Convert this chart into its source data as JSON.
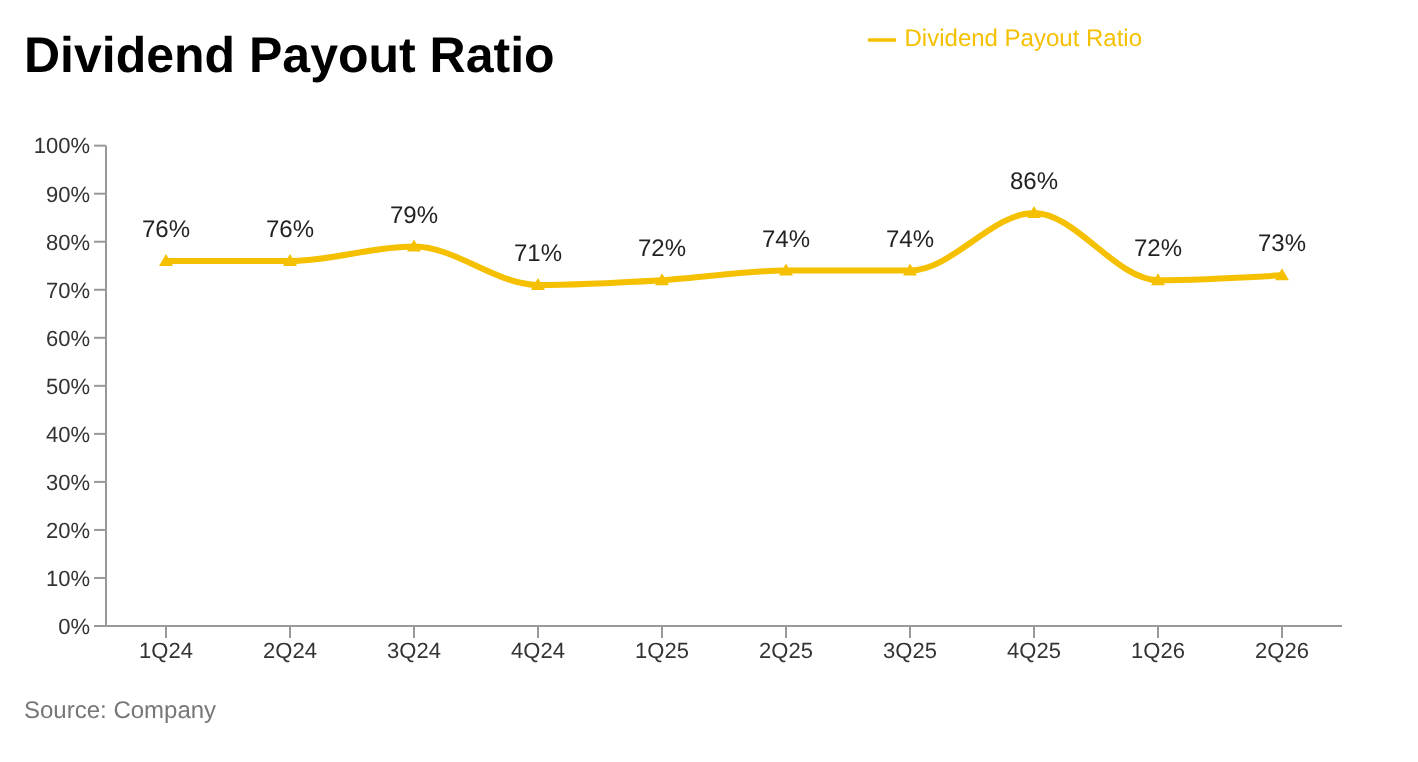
{
  "chart_data": {
    "type": "line",
    "title": "Dividend Payout Ratio",
    "categories": [
      "1Q24",
      "2Q24",
      "3Q24",
      "4Q24",
      "1Q25",
      "2Q25",
      "3Q25",
      "4Q25",
      "1Q26",
      "2Q26"
    ],
    "series": [
      {
        "name": "Dividend Payout Ratio",
        "color": "#f5c000",
        "values": [
          76,
          76,
          79,
          71,
          72,
          74,
          74,
          86,
          72,
          73
        ]
      }
    ],
    "ylim": [
      0,
      100
    ],
    "yticks": [
      {
        "value": 0,
        "label": "0%"
      },
      {
        "value": 10,
        "label": "10%"
      },
      {
        "value": 20,
        "label": "20%"
      },
      {
        "value": 30,
        "label": "30%"
      },
      {
        "value": 40,
        "label": "40%"
      },
      {
        "value": 50,
        "label": "50%"
      },
      {
        "value": 60,
        "label": "60%"
      },
      {
        "value": 70,
        "label": "70%"
      },
      {
        "value": 80,
        "label": "80%"
      },
      {
        "value": 90,
        "label": "90%"
      },
      {
        "value": 100,
        "label": "100%"
      }
    ],
    "value_labels": [
      "76%",
      "76%",
      "79%",
      "71%",
      "72%",
      "74%",
      "74%",
      "86%",
      "72%",
      "73%"
    ],
    "marker": "triangle",
    "legend": "top right",
    "grid": false,
    "annotations": [
      "Source: Company"
    ]
  }
}
